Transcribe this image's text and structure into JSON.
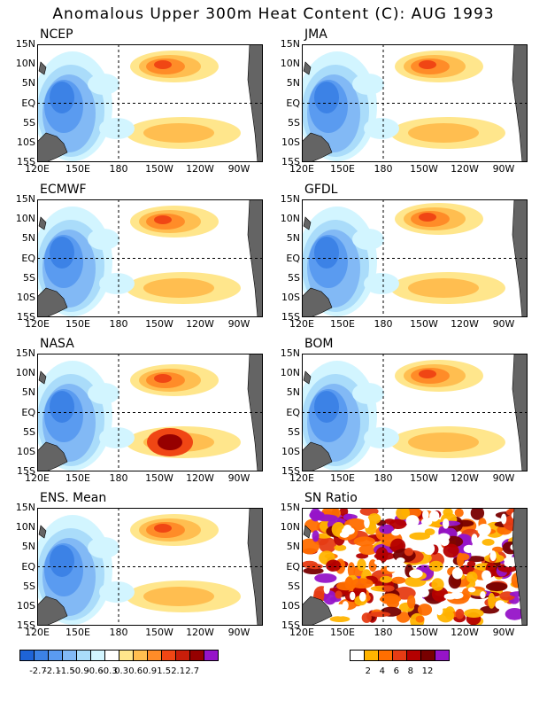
{
  "title": "Anomalous Upper 300m Heat Content (C): AUG 1993",
  "lat_labels": [
    "15N",
    "10N",
    "5N",
    "EQ",
    "5S",
    "10S",
    "15S"
  ],
  "lon_labels": [
    "120E",
    "150E",
    "180",
    "150W",
    "120W",
    "90W"
  ],
  "panels": [
    {
      "name": "NCEP"
    },
    {
      "name": "JMA"
    },
    {
      "name": "ECMWF"
    },
    {
      "name": "GFDL"
    },
    {
      "name": "NASA"
    },
    {
      "name": "BOM"
    },
    {
      "name": "ENS. Mean"
    },
    {
      "name": "SN Ratio"
    }
  ],
  "colorbar_anomaly": {
    "colors": [
      "#1e64d8",
      "#3c82e6",
      "#5a9bf0",
      "#82b9f5",
      "#aadcfa",
      "#d2f5ff",
      "#ffffff",
      "#ffe68c",
      "#ffbe50",
      "#ff8c28",
      "#f04614",
      "#c81e0a",
      "#960000",
      "#9614c8"
    ],
    "labels": [
      "-2.7",
      "-2.1",
      "-1.5",
      "-0.9",
      "-0.6",
      "-0.3",
      "0.3",
      "0.6",
      "0.9",
      "1.5",
      "2.1",
      "2.7"
    ]
  },
  "colorbar_sn": {
    "colors": [
      "#ffffff",
      "#ffb400",
      "#ff6e00",
      "#e63c14",
      "#b40000",
      "#780000",
      "#9614c8"
    ],
    "labels": [
      "2",
      "4",
      "6",
      "8",
      "12"
    ]
  }
}
